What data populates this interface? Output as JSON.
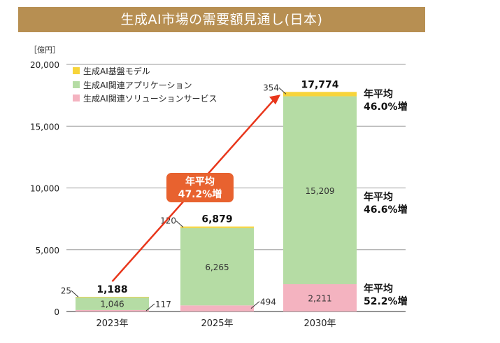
{
  "title": "生成AI市場の需要額見通し(日本)",
  "colors": {
    "title_bg": "#b78f52",
    "foundation": "#f7d43a",
    "applications": "#b5dca4",
    "services": "#f4b3c0",
    "arrow": "#e8361b",
    "cagr_box": "#e8622f"
  },
  "chart_data": {
    "type": "bar",
    "stacked": true,
    "unit_label": "［億円］",
    "categories": [
      "2023年",
      "2025年",
      "2030年"
    ],
    "ylim": [
      0,
      20000
    ],
    "yticks": [
      0,
      5000,
      10000,
      15000,
      20000
    ],
    "ytick_labels": [
      "0",
      "5,000",
      "10,000",
      "15,000",
      "20,000"
    ],
    "grid": true,
    "legend_position": "top-left",
    "series": [
      {
        "name": "生成AI関連ソリューションサービス",
        "values": [
          117,
          494,
          2211
        ],
        "labels": [
          "117",
          "494",
          "2,211"
        ]
      },
      {
        "name": "生成AI関連アプリケーション",
        "values": [
          1046,
          6265,
          15209
        ],
        "labels": [
          "1,046",
          "6,265",
          "15,209"
        ]
      },
      {
        "name": "生成AI基盤モデル",
        "values": [
          25,
          120,
          354
        ],
        "labels": [
          "25",
          "120",
          "354"
        ]
      }
    ],
    "legend_order": [
      "生成AI基盤モデル",
      "生成AI関連アプリケーション",
      "生成AI関連ソリューションサービス"
    ],
    "totals": [
      1188,
      6879,
      17774
    ],
    "total_labels": [
      "1,188",
      "6,879",
      "17,774"
    ],
    "growth_annotation": {
      "line1": "年平均",
      "line2": "47.2%増"
    },
    "segment_growth": [
      {
        "line1": "年平均",
        "line2": "46.0%増"
      },
      {
        "line1": "年平均",
        "line2": "46.6%増"
      },
      {
        "line1": "年平均",
        "line2": "52.2%増"
      }
    ]
  }
}
